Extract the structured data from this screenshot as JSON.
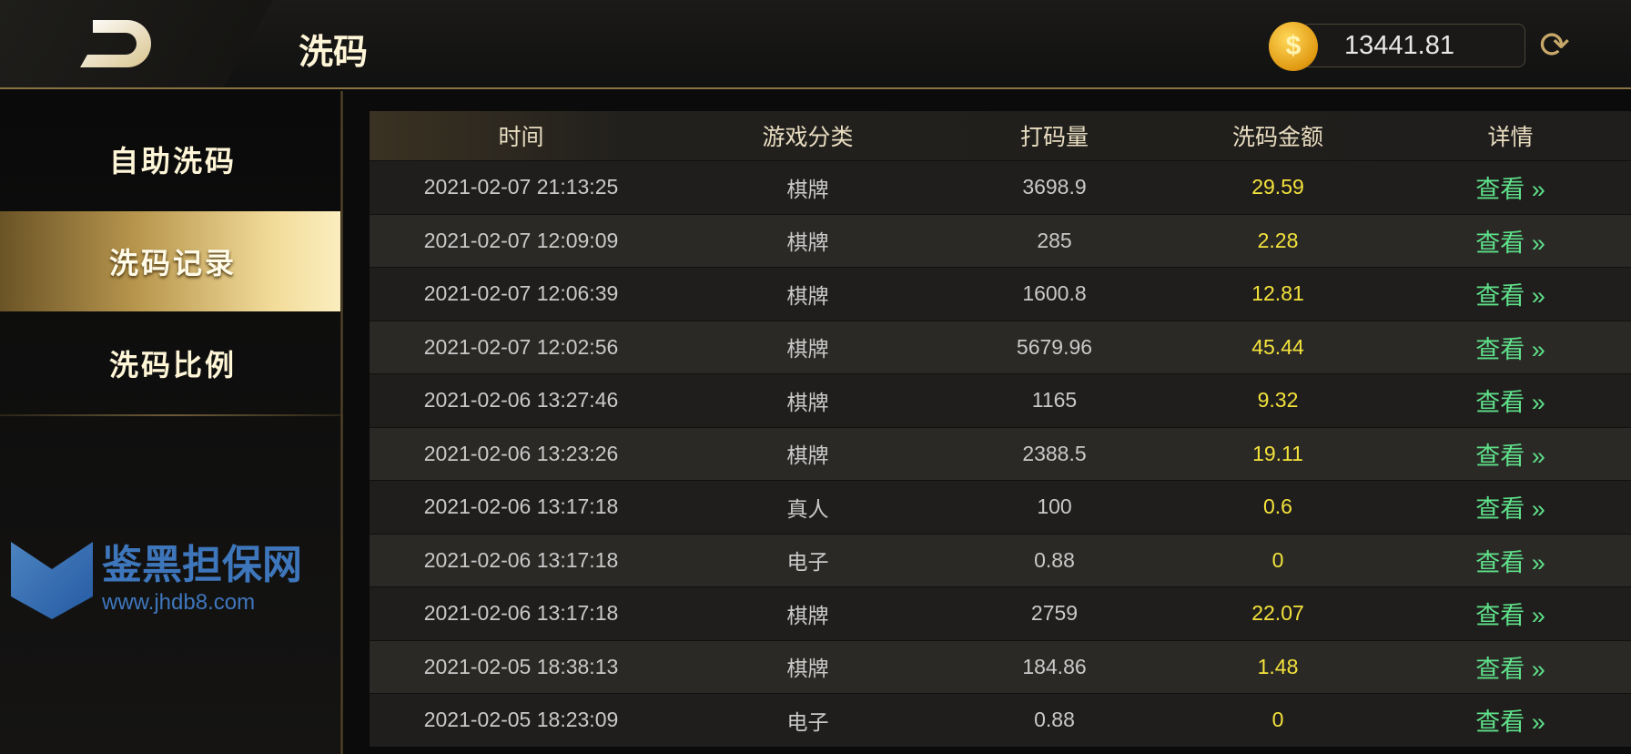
{
  "header": {
    "title": "洗码",
    "balance": "13441.81",
    "coin_icon": "$",
    "refresh_icon": "⟳"
  },
  "sidebar": {
    "items": [
      {
        "label": "自助洗码"
      },
      {
        "label": "洗码记录",
        "active": true
      },
      {
        "label": "洗码比例"
      }
    ]
  },
  "table": {
    "columns": [
      "时间",
      "游戏分类",
      "打码量",
      "洗码金额",
      "详情"
    ],
    "rows": [
      [
        "2021-02-07 21:13:25",
        "棋牌",
        "3698.9",
        "29.59",
        "查看 »"
      ],
      [
        "2021-02-07 12:09:09",
        "棋牌",
        "285",
        "2.28",
        "查看 »"
      ],
      [
        "2021-02-07 12:06:39",
        "棋牌",
        "1600.8",
        "12.81",
        "查看 »"
      ],
      [
        "2021-02-07 12:02:56",
        "棋牌",
        "5679.96",
        "45.44",
        "查看 »"
      ],
      [
        "2021-02-06 13:27:46",
        "棋牌",
        "1165",
        "9.32",
        "查看 »"
      ],
      [
        "2021-02-06 13:23:26",
        "棋牌",
        "2388.5",
        "19.11",
        "查看 »"
      ],
      [
        "2021-02-06 13:17:18",
        "真人",
        "100",
        "0.6",
        "查看 »"
      ],
      [
        "2021-02-06 13:17:18",
        "电子",
        "0.88",
        "0",
        "查看 »"
      ],
      [
        "2021-02-06 13:17:18",
        "棋牌",
        "2759",
        "22.07",
        "查看 »"
      ],
      [
        "2021-02-05 18:38:13",
        "棋牌",
        "184.86",
        "1.48",
        "查看 »"
      ],
      [
        "2021-02-05 18:23:09",
        "电子",
        "0.88",
        "0",
        "查看 »"
      ]
    ]
  },
  "watermark": {
    "name": "鉴黑担保网",
    "url": "www.jhdb8.com"
  },
  "colors": {
    "accent": "#c9a96a",
    "amount": "#f4e23c",
    "link": "#5fe08a"
  }
}
